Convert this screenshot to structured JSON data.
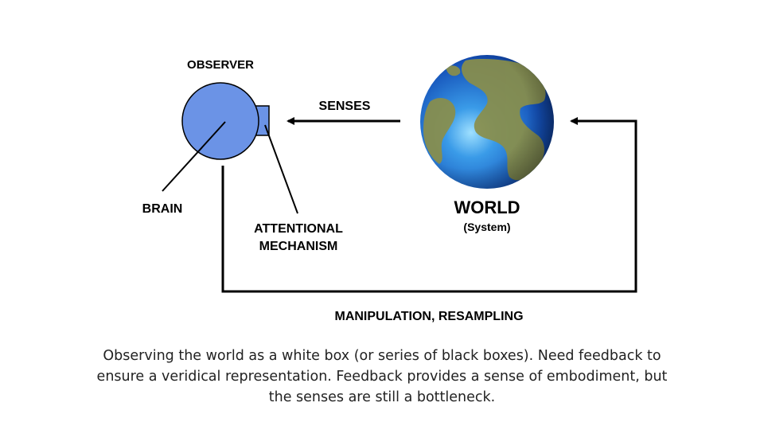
{
  "diagram": {
    "observer_label": "OBSERVER",
    "brain_label": "BRAIN",
    "attention_label_line1": "ATTENTIONAL",
    "attention_label_line2": "MECHANISM",
    "senses_label": "SENSES",
    "world_label": "WORLD",
    "world_sublabel": "(System)",
    "feedback_label": "MANIPULATION, RESAMPLING"
  },
  "caption": "Observing the world as a white box (or series of black boxes). Need feedback to ensure a veridical representation. Feedback provides a sense of embodiment, but the senses are still a bottleneck.",
  "colors": {
    "observer_fill": "#6b93e6",
    "ocean": "#1b5fc9",
    "land": "#7a8a3a"
  }
}
